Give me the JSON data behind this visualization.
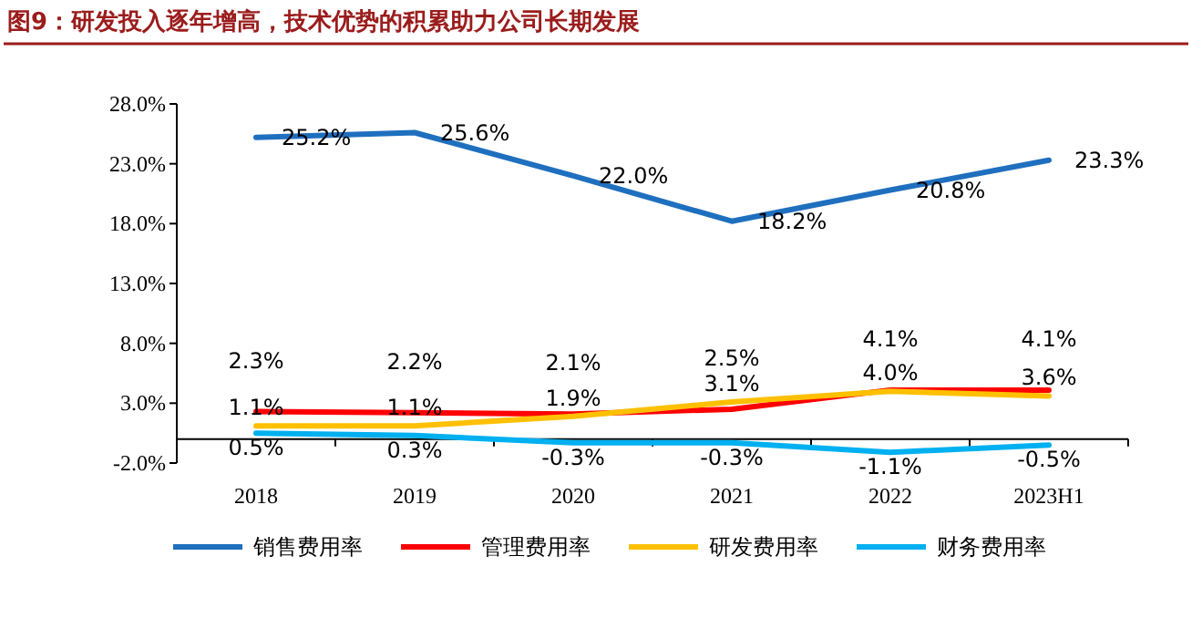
{
  "chart_data": {
    "type": "line",
    "title": "图9：研发投入逐年增高，技术优势的积累助力公司长期发展",
    "categories": [
      "2018",
      "2019",
      "2020",
      "2021",
      "2022",
      "2023H1"
    ],
    "ylim": [
      -2,
      28
    ],
    "yticks": [
      {
        "value": -2,
        "label": "-2.0%"
      },
      {
        "value": 3,
        "label": "3.0%"
      },
      {
        "value": 8,
        "label": "8.0%"
      },
      {
        "value": 13,
        "label": "13.0%"
      },
      {
        "value": 18,
        "label": "18.0%"
      },
      {
        "value": 23,
        "label": "23.0%"
      },
      {
        "value": 28,
        "label": "28.0%"
      }
    ],
    "grid": false,
    "legend": "bottom",
    "marker": "none",
    "line_style": "solid",
    "series": [
      {
        "name": "销售费用率",
        "color": "#1f6fbf",
        "values": [
          25.2,
          25.6,
          22.0,
          18.2,
          20.8,
          23.3
        ],
        "value_labels": [
          "25.2%",
          "25.6%",
          "22.0%",
          "18.2%",
          "20.8%",
          "23.3%"
        ]
      },
      {
        "name": "管理费用率",
        "color": "#ff0000",
        "values": [
          2.3,
          2.2,
          2.1,
          2.5,
          4.1,
          4.1
        ],
        "value_labels": [
          "2.3%",
          "2.2%",
          "2.1%",
          "2.5%",
          "4.1%",
          "4.1%"
        ]
      },
      {
        "name": "研发费用率",
        "color": "#ffc000",
        "values": [
          1.1,
          1.1,
          1.9,
          3.1,
          4.0,
          3.6
        ],
        "value_labels": [
          "1.1%",
          "1.1%",
          "1.9%",
          "3.1%",
          "4.0%",
          "3.6%"
        ]
      },
      {
        "name": "财务费用率",
        "color": "#00b0f0",
        "values": [
          0.5,
          0.3,
          -0.3,
          -0.3,
          -1.1,
          -0.5
        ],
        "value_labels": [
          "0.5%",
          "0.3%",
          "-0.3%",
          "-0.3%",
          "-1.1%",
          "-0.5%"
        ]
      }
    ]
  }
}
